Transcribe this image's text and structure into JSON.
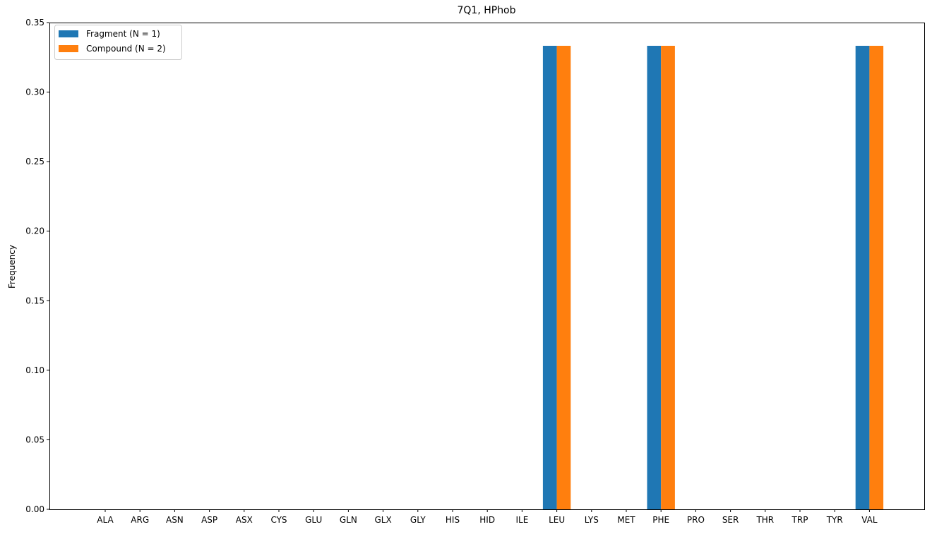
{
  "chart_data": {
    "type": "bar",
    "title": "7Q1, HPhob",
    "xlabel": "",
    "ylabel": "Frequency",
    "ylim": [
      0,
      0.35
    ],
    "yticks": [
      "0.00",
      "0.05",
      "0.10",
      "0.15",
      "0.20",
      "0.25",
      "0.30",
      "0.35"
    ],
    "grid": false,
    "legend_position": "top-left",
    "categories": [
      "ALA",
      "ARG",
      "ASN",
      "ASP",
      "ASX",
      "CYS",
      "GLU",
      "GLN",
      "GLX",
      "GLY",
      "HIS",
      "HID",
      "ILE",
      "LEU",
      "LYS",
      "MET",
      "PHE",
      "PRO",
      "SER",
      "THR",
      "TRP",
      "TYR",
      "VAL"
    ],
    "series": [
      {
        "name": "Fragment (N = 1)",
        "color": "#1f77b4",
        "values": [
          0,
          0,
          0,
          0,
          0,
          0,
          0,
          0,
          0,
          0,
          0,
          0,
          0,
          0.3333,
          0,
          0,
          0.3333,
          0,
          0,
          0,
          0,
          0,
          0.3333
        ]
      },
      {
        "name": "Compound (N = 2)",
        "color": "#ff7f0e",
        "values": [
          0,
          0,
          0,
          0,
          0,
          0,
          0,
          0,
          0,
          0,
          0,
          0,
          0,
          0.3333,
          0,
          0,
          0.3333,
          0,
          0,
          0,
          0,
          0,
          0.3333
        ]
      }
    ]
  }
}
